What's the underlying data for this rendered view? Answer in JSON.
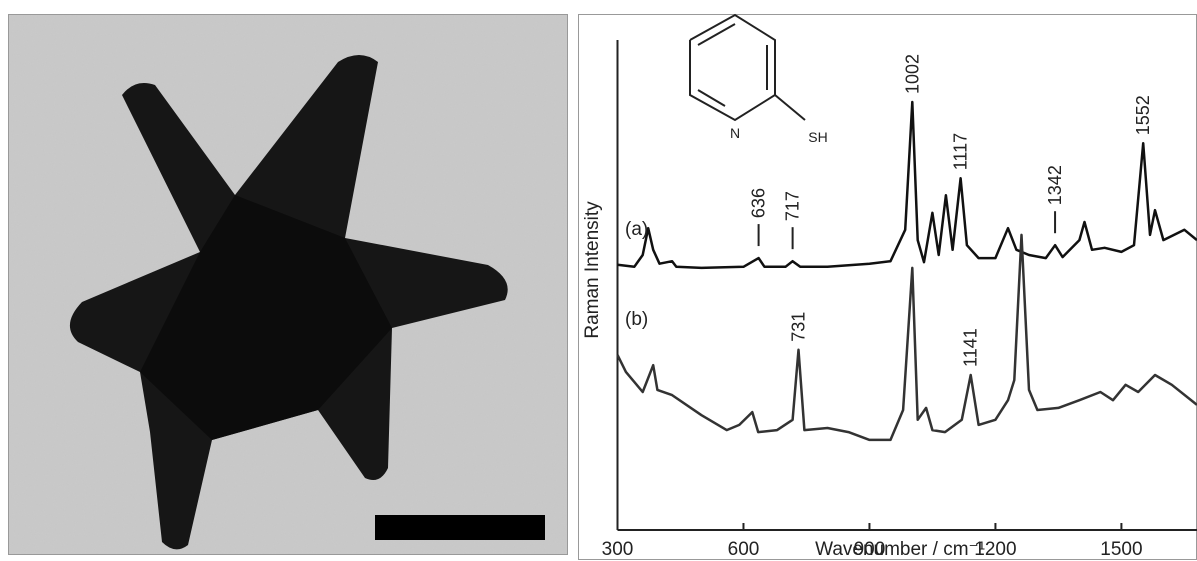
{
  "chart_data": {
    "type": "line",
    "x_label": "Wavenumber / cm⁻¹",
    "y_label": "Raman Intensity",
    "structure_atoms": [
      "N",
      "SH"
    ],
    "xlim": [
      300,
      1680
    ],
    "xticks": [
      300,
      600,
      900,
      1200,
      1500
    ],
    "ylim": [
      0,
      100
    ],
    "series": [
      {
        "name": "(a)",
        "color": "#111111",
        "x": [
          300,
          340,
          360,
          373,
          385,
          400,
          430,
          440,
          500,
          600,
          636,
          650,
          700,
          717,
          735,
          800,
          900,
          950,
          985,
          1002,
          1015,
          1030,
          1050,
          1065,
          1082,
          1098,
          1117,
          1132,
          1160,
          1200,
          1230,
          1250,
          1280,
          1320,
          1342,
          1360,
          1400,
          1412,
          1430,
          1460,
          1500,
          1530,
          1552,
          1568,
          1580,
          1600,
          1650,
          1680
        ],
        "values": [
          51.5,
          51.1,
          53.4,
          58.6,
          54.4,
          51.7,
          52.2,
          51.1,
          50.9,
          51.1,
          52.8,
          51.1,
          51.1,
          52.2,
          51.1,
          51.1,
          51.7,
          52.2,
          58.3,
          83.1,
          56.3,
          52.0,
          61.6,
          53.4,
          65.0,
          54.4,
          68.3,
          55.3,
          52.8,
          52.8,
          58.6,
          54.4,
          53.4,
          52.8,
          55.3,
          53.0,
          56.3,
          59.8,
          54.4,
          54.8,
          54.0,
          55.3,
          75.1,
          57.3,
          62.1,
          56.3,
          58.3,
          56.3
        ],
        "peak_labels": [
          {
            "label": "636",
            "x": 636,
            "leader": true
          },
          {
            "label": "717",
            "x": 717,
            "leader": true
          },
          {
            "label": "1002",
            "x": 1002,
            "leader": false
          },
          {
            "label": "1117",
            "x": 1117,
            "leader": false
          },
          {
            "label": "1342",
            "x": 1342,
            "leader": true
          },
          {
            "label": "1552",
            "x": 1552,
            "leader": false
          }
        ]
      },
      {
        "name": "(b)",
        "color": "#333333",
        "x": [
          300,
          320,
          360,
          385,
          395,
          430,
          500,
          560,
          590,
          621,
          635,
          680,
          717,
          731,
          745,
          800,
          850,
          900,
          950,
          980,
          1002,
          1015,
          1035,
          1050,
          1080,
          1120,
          1141,
          1160,
          1200,
          1230,
          1245,
          1262,
          1280,
          1300,
          1350,
          1400,
          1450,
          1480,
          1510,
          1540,
          1580,
          1620,
          1680
        ],
        "values": [
          34.0,
          30.7,
          26.8,
          32.0,
          27.2,
          26.2,
          22.3,
          19.4,
          20.4,
          22.9,
          19.0,
          19.4,
          21.4,
          35.0,
          19.4,
          19.8,
          19.0,
          17.5,
          17.5,
          23.3,
          50.9,
          21.4,
          23.7,
          19.4,
          19.0,
          21.4,
          30.1,
          20.4,
          21.4,
          25.2,
          29.1,
          57.3,
          27.2,
          23.3,
          23.7,
          25.2,
          26.8,
          25.2,
          28.2,
          26.8,
          30.1,
          28.2,
          24.3
        ],
        "peak_labels": [
          {
            "label": "731",
            "x": 731,
            "leader": false
          },
          {
            "label": "1141",
            "x": 1141,
            "leader": false
          }
        ]
      }
    ]
  }
}
